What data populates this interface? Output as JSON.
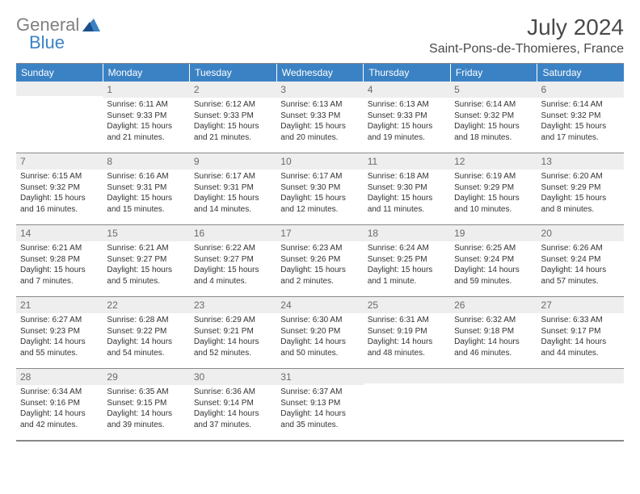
{
  "brand": {
    "text1": "General",
    "text2": "Blue"
  },
  "title": "July 2024",
  "location": "Saint-Pons-de-Thomieres, France",
  "colors": {
    "header_bg": "#3b82c4",
    "header_text": "#ffffff",
    "daynum_bg": "#eeeeee",
    "border": "#888888",
    "body_text": "#333333",
    "logo_gray": "#808080",
    "logo_blue": "#3b82c4",
    "page_bg": "#ffffff"
  },
  "typography": {
    "title_fontsize_pt": 21,
    "location_fontsize_pt": 12,
    "header_fontsize_pt": 9,
    "body_fontsize_pt": 7.5
  },
  "layout": {
    "columns": 7,
    "rows": 5
  },
  "weekdays": [
    "Sunday",
    "Monday",
    "Tuesday",
    "Wednesday",
    "Thursday",
    "Friday",
    "Saturday"
  ],
  "weeks": [
    [
      {
        "n": "",
        "sunrise": "",
        "sunset": "",
        "daylight": ""
      },
      {
        "n": "1",
        "sunrise": "Sunrise: 6:11 AM",
        "sunset": "Sunset: 9:33 PM",
        "daylight": "Daylight: 15 hours and 21 minutes."
      },
      {
        "n": "2",
        "sunrise": "Sunrise: 6:12 AM",
        "sunset": "Sunset: 9:33 PM",
        "daylight": "Daylight: 15 hours and 21 minutes."
      },
      {
        "n": "3",
        "sunrise": "Sunrise: 6:13 AM",
        "sunset": "Sunset: 9:33 PM",
        "daylight": "Daylight: 15 hours and 20 minutes."
      },
      {
        "n": "4",
        "sunrise": "Sunrise: 6:13 AM",
        "sunset": "Sunset: 9:33 PM",
        "daylight": "Daylight: 15 hours and 19 minutes."
      },
      {
        "n": "5",
        "sunrise": "Sunrise: 6:14 AM",
        "sunset": "Sunset: 9:32 PM",
        "daylight": "Daylight: 15 hours and 18 minutes."
      },
      {
        "n": "6",
        "sunrise": "Sunrise: 6:14 AM",
        "sunset": "Sunset: 9:32 PM",
        "daylight": "Daylight: 15 hours and 17 minutes."
      }
    ],
    [
      {
        "n": "7",
        "sunrise": "Sunrise: 6:15 AM",
        "sunset": "Sunset: 9:32 PM",
        "daylight": "Daylight: 15 hours and 16 minutes."
      },
      {
        "n": "8",
        "sunrise": "Sunrise: 6:16 AM",
        "sunset": "Sunset: 9:31 PM",
        "daylight": "Daylight: 15 hours and 15 minutes."
      },
      {
        "n": "9",
        "sunrise": "Sunrise: 6:17 AM",
        "sunset": "Sunset: 9:31 PM",
        "daylight": "Daylight: 15 hours and 14 minutes."
      },
      {
        "n": "10",
        "sunrise": "Sunrise: 6:17 AM",
        "sunset": "Sunset: 9:30 PM",
        "daylight": "Daylight: 15 hours and 12 minutes."
      },
      {
        "n": "11",
        "sunrise": "Sunrise: 6:18 AM",
        "sunset": "Sunset: 9:30 PM",
        "daylight": "Daylight: 15 hours and 11 minutes."
      },
      {
        "n": "12",
        "sunrise": "Sunrise: 6:19 AM",
        "sunset": "Sunset: 9:29 PM",
        "daylight": "Daylight: 15 hours and 10 minutes."
      },
      {
        "n": "13",
        "sunrise": "Sunrise: 6:20 AM",
        "sunset": "Sunset: 9:29 PM",
        "daylight": "Daylight: 15 hours and 8 minutes."
      }
    ],
    [
      {
        "n": "14",
        "sunrise": "Sunrise: 6:21 AM",
        "sunset": "Sunset: 9:28 PM",
        "daylight": "Daylight: 15 hours and 7 minutes."
      },
      {
        "n": "15",
        "sunrise": "Sunrise: 6:21 AM",
        "sunset": "Sunset: 9:27 PM",
        "daylight": "Daylight: 15 hours and 5 minutes."
      },
      {
        "n": "16",
        "sunrise": "Sunrise: 6:22 AM",
        "sunset": "Sunset: 9:27 PM",
        "daylight": "Daylight: 15 hours and 4 minutes."
      },
      {
        "n": "17",
        "sunrise": "Sunrise: 6:23 AM",
        "sunset": "Sunset: 9:26 PM",
        "daylight": "Daylight: 15 hours and 2 minutes."
      },
      {
        "n": "18",
        "sunrise": "Sunrise: 6:24 AM",
        "sunset": "Sunset: 9:25 PM",
        "daylight": "Daylight: 15 hours and 1 minute."
      },
      {
        "n": "19",
        "sunrise": "Sunrise: 6:25 AM",
        "sunset": "Sunset: 9:24 PM",
        "daylight": "Daylight: 14 hours and 59 minutes."
      },
      {
        "n": "20",
        "sunrise": "Sunrise: 6:26 AM",
        "sunset": "Sunset: 9:24 PM",
        "daylight": "Daylight: 14 hours and 57 minutes."
      }
    ],
    [
      {
        "n": "21",
        "sunrise": "Sunrise: 6:27 AM",
        "sunset": "Sunset: 9:23 PM",
        "daylight": "Daylight: 14 hours and 55 minutes."
      },
      {
        "n": "22",
        "sunrise": "Sunrise: 6:28 AM",
        "sunset": "Sunset: 9:22 PM",
        "daylight": "Daylight: 14 hours and 54 minutes."
      },
      {
        "n": "23",
        "sunrise": "Sunrise: 6:29 AM",
        "sunset": "Sunset: 9:21 PM",
        "daylight": "Daylight: 14 hours and 52 minutes."
      },
      {
        "n": "24",
        "sunrise": "Sunrise: 6:30 AM",
        "sunset": "Sunset: 9:20 PM",
        "daylight": "Daylight: 14 hours and 50 minutes."
      },
      {
        "n": "25",
        "sunrise": "Sunrise: 6:31 AM",
        "sunset": "Sunset: 9:19 PM",
        "daylight": "Daylight: 14 hours and 48 minutes."
      },
      {
        "n": "26",
        "sunrise": "Sunrise: 6:32 AM",
        "sunset": "Sunset: 9:18 PM",
        "daylight": "Daylight: 14 hours and 46 minutes."
      },
      {
        "n": "27",
        "sunrise": "Sunrise: 6:33 AM",
        "sunset": "Sunset: 9:17 PM",
        "daylight": "Daylight: 14 hours and 44 minutes."
      }
    ],
    [
      {
        "n": "28",
        "sunrise": "Sunrise: 6:34 AM",
        "sunset": "Sunset: 9:16 PM",
        "daylight": "Daylight: 14 hours and 42 minutes."
      },
      {
        "n": "29",
        "sunrise": "Sunrise: 6:35 AM",
        "sunset": "Sunset: 9:15 PM",
        "daylight": "Daylight: 14 hours and 39 minutes."
      },
      {
        "n": "30",
        "sunrise": "Sunrise: 6:36 AM",
        "sunset": "Sunset: 9:14 PM",
        "daylight": "Daylight: 14 hours and 37 minutes."
      },
      {
        "n": "31",
        "sunrise": "Sunrise: 6:37 AM",
        "sunset": "Sunset: 9:13 PM",
        "daylight": "Daylight: 14 hours and 35 minutes."
      },
      {
        "n": "",
        "sunrise": "",
        "sunset": "",
        "daylight": ""
      },
      {
        "n": "",
        "sunrise": "",
        "sunset": "",
        "daylight": ""
      },
      {
        "n": "",
        "sunrise": "",
        "sunset": "",
        "daylight": ""
      }
    ]
  ]
}
